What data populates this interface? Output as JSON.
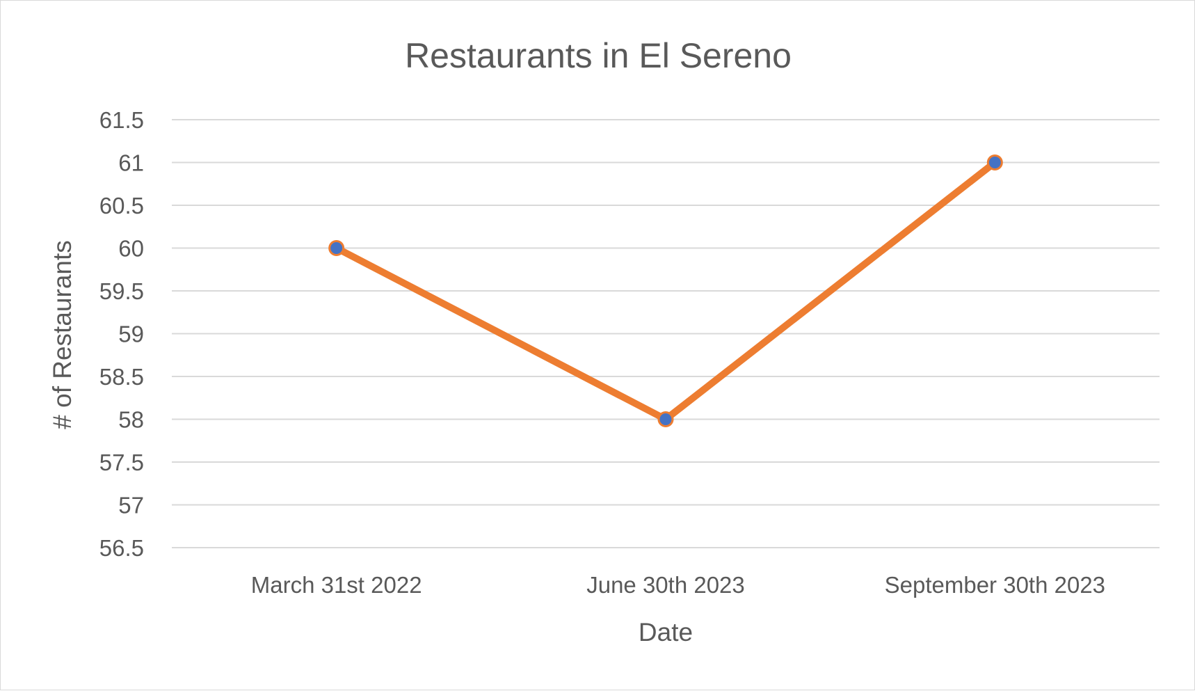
{
  "chart_data": {
    "type": "line",
    "title": "Restaurants in El Sereno",
    "xlabel": "Date",
    "ylabel": "# of Restaurants",
    "categories": [
      "March 31st 2022",
      "June 30th 2023",
      "September 30th 2023"
    ],
    "series": [
      {
        "values": [
          60,
          58,
          61
        ]
      }
    ],
    "ylim": [
      56.5,
      61.5
    ],
    "ytick_step": 0.5,
    "yticks": [
      "56.5",
      "57",
      "57.5",
      "58",
      "58.5",
      "59",
      "59.5",
      "60",
      "60.5",
      "61",
      "61.5"
    ],
    "grid": true,
    "legend": "none",
    "colors": {
      "line": "#ED7D31",
      "marker_fill": "#4472C4",
      "marker_edge": "#ED7D31",
      "gridline": "#d9d9d9",
      "text": "#595959"
    }
  }
}
